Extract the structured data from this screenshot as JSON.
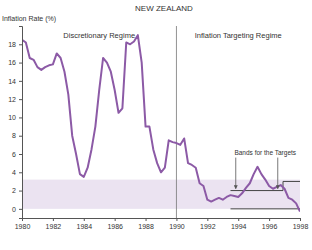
{
  "chart_data": {
    "type": "line",
    "title": "NEW ZEALAND",
    "y_label": "Inflation Rate (%)",
    "color": "#8c5aa6",
    "x": [
      1980.0,
      1980.25,
      1980.5,
      1980.75,
      1981.0,
      1981.25,
      1981.5,
      1981.75,
      1982.0,
      1982.25,
      1982.5,
      1982.75,
      1983.0,
      1983.25,
      1983.5,
      1983.75,
      1984.0,
      1984.25,
      1984.5,
      1984.75,
      1985.0,
      1985.25,
      1985.5,
      1985.75,
      1986.0,
      1986.25,
      1986.5,
      1986.75,
      1987.0,
      1987.25,
      1987.5,
      1987.75,
      1988.0,
      1988.25,
      1988.5,
      1988.75,
      1989.0,
      1989.25,
      1989.5,
      1989.75,
      1990.0,
      1990.25,
      1990.5,
      1990.75,
      1991.0,
      1991.25,
      1991.5,
      1991.75,
      1992.0,
      1992.25,
      1992.5,
      1992.75,
      1993.0,
      1993.25,
      1993.5,
      1993.75,
      1994.0,
      1994.25,
      1994.5,
      1994.75,
      1995.0,
      1995.25,
      1995.5,
      1995.75,
      1996.0,
      1996.25,
      1996.5,
      1996.75,
      1997.0,
      1997.25,
      1997.5,
      1997.75,
      1998.0
    ],
    "values": [
      18.5,
      18.2,
      16.5,
      16.3,
      15.5,
      15.2,
      15.5,
      15.7,
      15.8,
      17.0,
      16.5,
      15.0,
      12.5,
      8.0,
      6.0,
      3.8,
      3.5,
      4.5,
      6.5,
      9.0,
      13.0,
      16.5,
      16.0,
      15.0,
      13.0,
      10.5,
      11.0,
      18.2,
      18.0,
      18.3,
      19.0,
      16.0,
      9.0,
      9.0,
      6.5,
      5.0,
      4.0,
      4.5,
      7.5,
      7.3,
      7.2,
      7.0,
      7.7,
      5.0,
      4.8,
      4.5,
      2.8,
      2.5,
      1.0,
      0.8,
      1.0,
      1.2,
      1.0,
      1.3,
      1.5,
      1.4,
      1.3,
      1.7,
      2.3,
      2.8,
      3.8,
      4.6,
      3.8,
      3.2,
      2.5,
      2.2,
      2.4,
      2.6,
      2.2,
      1.2,
      1.0,
      0.6,
      -0.3
    ],
    "xlim": [
      1980,
      1998
    ],
    "ylim": [
      -1,
      20
    ],
    "xticks": [
      1980,
      1982,
      1984,
      1986,
      1988,
      1990,
      1992,
      1994,
      1996,
      1998
    ],
    "yticks": [
      0,
      2,
      4,
      6,
      8,
      10,
      12,
      14,
      16,
      18
    ],
    "regimes": [
      {
        "label": "Discretionary Regime",
        "start": 1980,
        "end": 1990
      },
      {
        "label": "Inflation Targeting Regime",
        "start": 1990,
        "end": 1998
      }
    ],
    "shaded_band": {
      "lower": 0,
      "upper": 3.2
    },
    "target_bands": {
      "label": "Bands for the Targets",
      "segments": [
        {
          "start": 1993.5,
          "end": 1996.9,
          "lower": 0,
          "upper": 2
        },
        {
          "start": 1996.9,
          "end": 1998,
          "lower": 0,
          "upper": 3
        }
      ]
    }
  }
}
